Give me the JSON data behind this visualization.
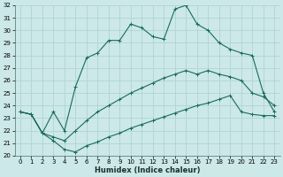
{
  "xlabel": "Humidex (Indice chaleur)",
  "ylabel": "",
  "xlim": [
    -0.5,
    23.5
  ],
  "ylim": [
    20,
    32
  ],
  "xticks": [
    0,
    1,
    2,
    3,
    4,
    5,
    6,
    7,
    8,
    9,
    10,
    11,
    12,
    13,
    14,
    15,
    16,
    17,
    18,
    19,
    20,
    21,
    22,
    23
  ],
  "yticks": [
    20,
    21,
    22,
    23,
    24,
    25,
    26,
    27,
    28,
    29,
    30,
    31,
    32
  ],
  "bg_color": "#cce8e8",
  "grid_color": "#b0d4d4",
  "line_color": "#1a6b5a",
  "line1_x": [
    0,
    1,
    2,
    3,
    4,
    5,
    6,
    7,
    8,
    9,
    10,
    11,
    12,
    13,
    14,
    15,
    16,
    17,
    18,
    19,
    20,
    21,
    22,
    23
  ],
  "line1_y": [
    23.5,
    23.3,
    21.8,
    23.5,
    22.0,
    25.5,
    27.8,
    28.2,
    29.2,
    29.2,
    30.5,
    30.2,
    29.5,
    29.3,
    31.7,
    32.0,
    30.5,
    30.0,
    29.0,
    28.5,
    28.2,
    28.0,
    25.0,
    23.5
  ],
  "line2_x": [
    0,
    1,
    2,
    3,
    4,
    5,
    6,
    7,
    8,
    9,
    10,
    11,
    12,
    13,
    14,
    15,
    16,
    17,
    18,
    19,
    20,
    21,
    22,
    23
  ],
  "line2_y": [
    23.5,
    23.3,
    21.8,
    21.5,
    21.2,
    22.0,
    22.8,
    23.5,
    24.0,
    24.5,
    25.0,
    25.4,
    25.8,
    26.2,
    26.5,
    26.8,
    26.5,
    26.8,
    26.5,
    26.3,
    26.0,
    25.0,
    24.7,
    24.0
  ],
  "line3_x": [
    0,
    1,
    2,
    3,
    4,
    5,
    6,
    7,
    8,
    9,
    10,
    11,
    12,
    13,
    14,
    15,
    16,
    17,
    18,
    19,
    20,
    21,
    22,
    23
  ],
  "line3_y": [
    23.5,
    23.3,
    21.8,
    21.2,
    20.5,
    20.3,
    20.8,
    21.1,
    21.5,
    21.8,
    22.2,
    22.5,
    22.8,
    23.1,
    23.4,
    23.7,
    24.0,
    24.2,
    24.5,
    24.8,
    23.5,
    23.3,
    23.2,
    23.2
  ]
}
